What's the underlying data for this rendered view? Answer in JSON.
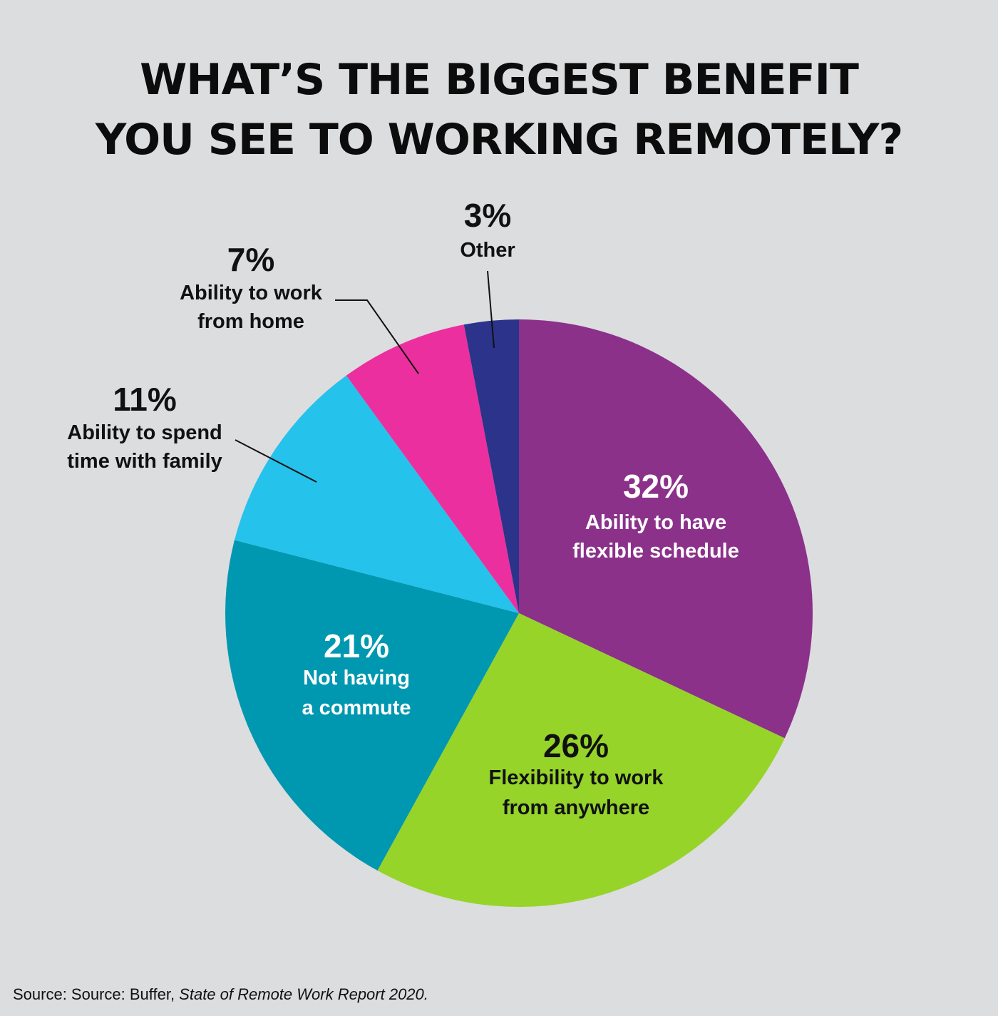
{
  "title": {
    "line1": "WHAT’S THE BIGGEST BENEFIT",
    "line2": "YOU SEE TO WORKING REMOTELY?"
  },
  "chart_data": {
    "type": "pie",
    "title": "WHAT’S THE BIGGEST BENEFIT YOU SEE TO WORKING REMOTELY?",
    "unit": "%",
    "start_angle": "12 o'clock, clockwise",
    "slices": [
      {
        "key": "flexible-schedule",
        "value": 32,
        "label": "32%",
        "text": [
          "Ability to have",
          "flexible schedule"
        ],
        "color": "#8b318a",
        "text_color": "#ffffff",
        "label_position": "inside"
      },
      {
        "key": "work-from-anywhere",
        "value": 26,
        "label": "26%",
        "text": [
          "Flexibility to work",
          "from anywhere"
        ],
        "color": "#96d42a",
        "text_color": "#111111",
        "label_position": "inside"
      },
      {
        "key": "no-commute",
        "value": 21,
        "label": "21%",
        "text": [
          "Not having",
          "a commute"
        ],
        "color": "#0098b0",
        "text_color": "#ffffff",
        "label_position": "inside"
      },
      {
        "key": "time-with-family",
        "value": 11,
        "label": "11%",
        "text": [
          "Ability to spend",
          "time with family"
        ],
        "color": "#25c2eb",
        "text_color": "#111111",
        "label_position": "outside"
      },
      {
        "key": "work-from-home",
        "value": 7,
        "label": "7%",
        "text": [
          "Ability to work",
          "from home"
        ],
        "color": "#ec2f9e",
        "text_color": "#111111",
        "label_position": "outside"
      },
      {
        "key": "other",
        "value": 3,
        "label": "3%",
        "text": [
          "Other"
        ],
        "color": "#2c338a",
        "text_color": "#111111",
        "label_position": "outside"
      }
    ]
  },
  "source": {
    "prefix": "Source: Source: Buffer, ",
    "report": "State of Remote Work Report 2020."
  }
}
